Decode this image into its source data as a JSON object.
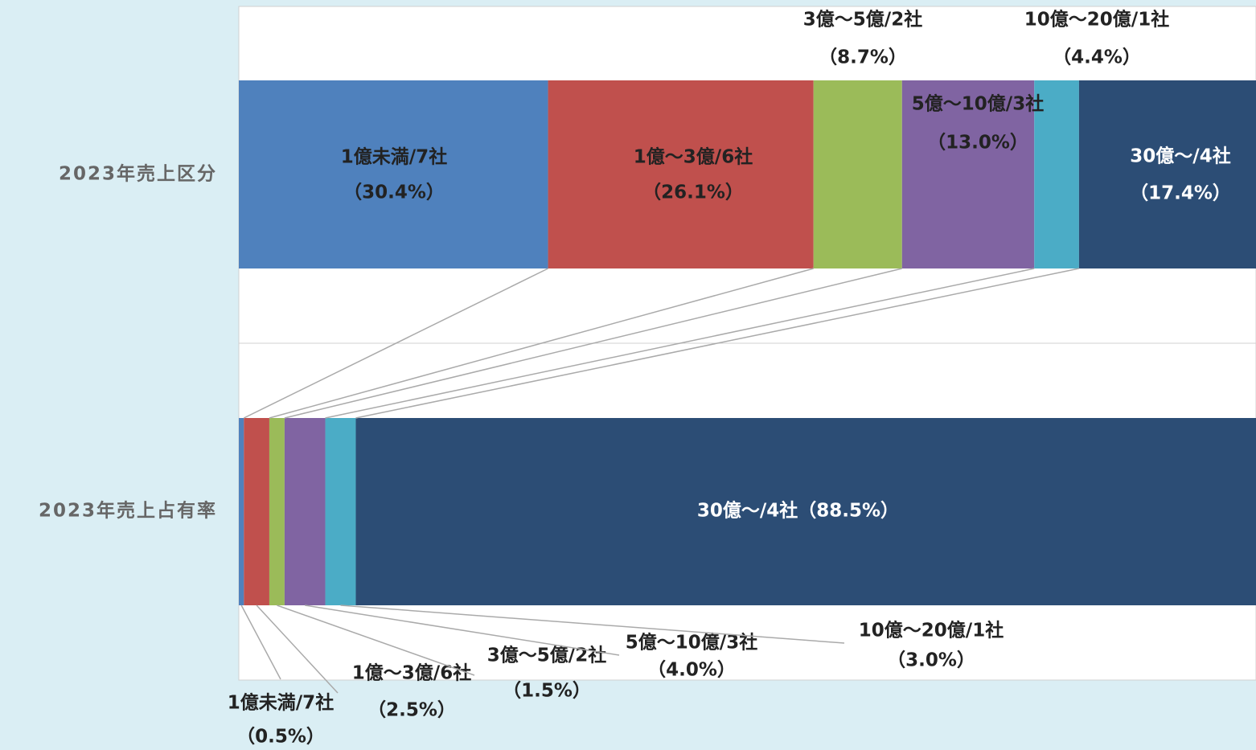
{
  "chart_data": {
    "type": "stacked-bar-100",
    "orientation": "horizontal",
    "categories": [
      "2023年売上区分",
      "2023年売上占有率"
    ],
    "xlim": [
      0,
      100
    ],
    "series": [
      {
        "name": "1億未満/7社",
        "color": "#4f81bd",
        "values": [
          30.4,
          0.5
        ],
        "value_labels": [
          "（30.4%）",
          "（0.5%）"
        ]
      },
      {
        "name": "1億～3億/6社",
        "color": "#c0504d",
        "values": [
          26.1,
          2.5
        ],
        "value_labels": [
          "（26.1%）",
          "（2.5%）"
        ]
      },
      {
        "name": "3億～5億/2社",
        "color": "#9bbb59",
        "values": [
          8.7,
          1.5
        ],
        "value_labels": [
          "（8.7%）",
          "（1.5%）"
        ]
      },
      {
        "name": "5億～10億/3社",
        "color": "#8064a2",
        "values": [
          13.0,
          4.0
        ],
        "value_labels": [
          "（13.0%）",
          "（4.0%）"
        ]
      },
      {
        "name": "10億～20億/1社",
        "color": "#4bacc6",
        "values": [
          4.4,
          3.0
        ],
        "value_labels": [
          "（4.4%）",
          "（3.0%）"
        ]
      },
      {
        "name": "30億～/4社",
        "color": "#2c4d75",
        "values": [
          17.4,
          88.5
        ],
        "value_labels": [
          "（17.4%）",
          "（88.5%）"
        ]
      }
    ]
  }
}
